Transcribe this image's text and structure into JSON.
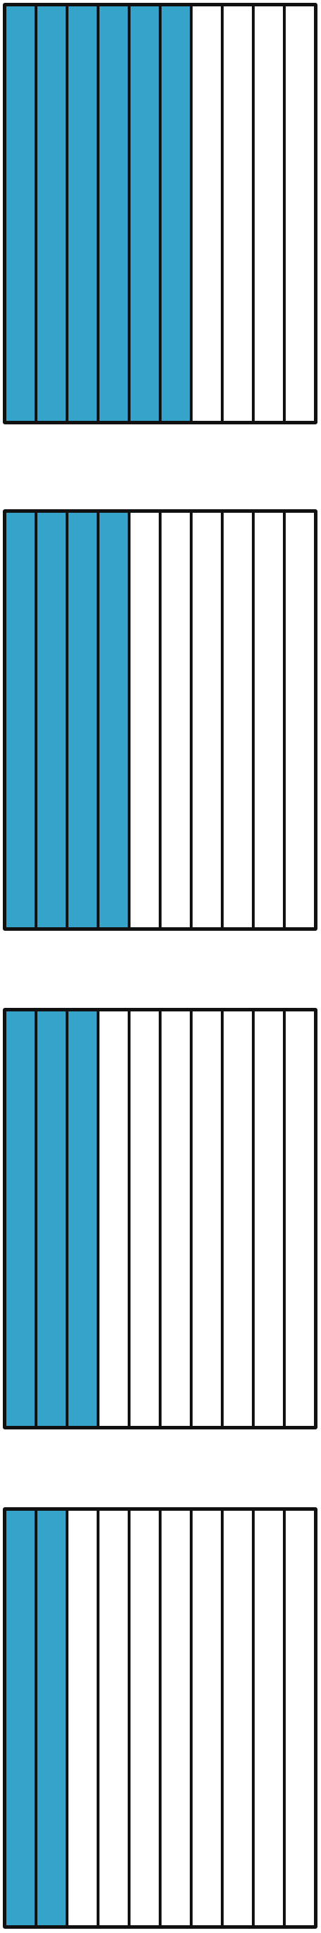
{
  "colors": {
    "shaded": "#36a3cb",
    "unshaded": "#ffffff",
    "outline": "#111111"
  },
  "strips_per_model": 10,
  "models": [
    {
      "shaded_strips": 6
    },
    {
      "shaded_strips": 4
    },
    {
      "shaded_strips": 3
    },
    {
      "shaded_strips": 2
    }
  ]
}
